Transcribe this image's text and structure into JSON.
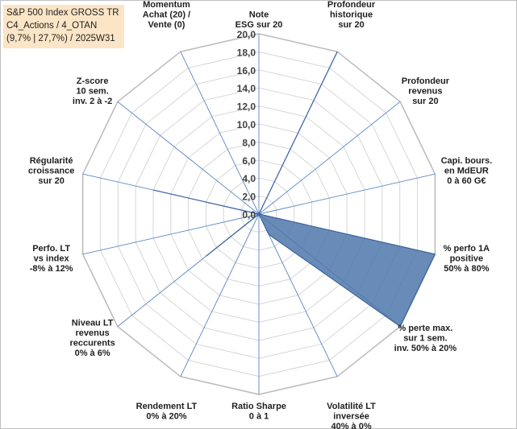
{
  "title": {
    "line1": "S&P 500 Index GROSS TR",
    "line2": "C4_Actions / 4_OTAN",
    "line3": "(9,7% | 27,7%) / 2025W31"
  },
  "chart_data": {
    "type": "radar",
    "range": [
      0,
      20
    ],
    "tick_labels": [
      "0,0",
      "2,0",
      "4,0",
      "6,0",
      "8,0",
      "10,0",
      "12,0",
      "14,0",
      "16,0",
      "18,0",
      "20,0"
    ],
    "grid": true,
    "series_color": "#4f77aa",
    "axes": [
      {
        "label": [
          "Note",
          "ESG sur 20"
        ],
        "value": 0
      },
      {
        "label": [
          "Profondeur",
          "historique",
          "sur 20"
        ],
        "value": 20
      },
      {
        "label": [
          "Profondeur",
          "revenus",
          "sur 20"
        ],
        "value": 0
      },
      {
        "label": [
          "Capi. bours.",
          "en MdEUR",
          "0 à 60 G€"
        ],
        "value": 0
      },
      {
        "label": [
          "% perfo 1A",
          "positive",
          "50% à 80%"
        ],
        "value": 20
      },
      {
        "label": [
          "% perte max.",
          "sur 1 sem.",
          "inv. 50% à 20%"
        ],
        "value": 20
      },
      {
        "label": [
          "Volatilité LT",
          "inversée",
          "40% à 0%"
        ],
        "value": 2.5
      },
      {
        "label": [
          "Ratio Sharpe",
          "0 à 1"
        ],
        "value": 0
      },
      {
        "label": [
          "Rendement LT",
          "0% à 20%"
        ],
        "value": 0
      },
      {
        "label": [
          "Niveau LT",
          "revenus",
          "reccurents",
          "0% à 6%"
        ],
        "value": 7.5
      },
      {
        "label": [
          "Perfo. LT",
          "vs index",
          "-8% à 12%"
        ],
        "value": 0
      },
      {
        "label": [
          "Régularité",
          "croissance",
          "sur 20"
        ],
        "value": 12
      },
      {
        "label": [
          "Z-score",
          "10 sem.",
          "inv. 2 à -2"
        ],
        "value": 0
      },
      {
        "label": [
          "Momentum",
          "Achat (20) /",
          "Vente (0)"
        ],
        "value": 0
      }
    ]
  }
}
